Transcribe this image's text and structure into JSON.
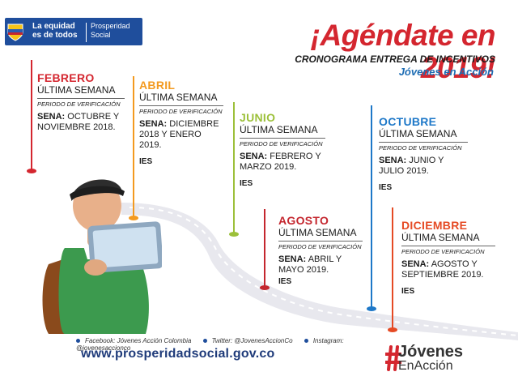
{
  "header": {
    "tagline": "La equidad es de todos",
    "brand": "Prosperidad Social",
    "headline": "¡Agéndate en 2019!",
    "subtitle": "CRONOGRAMA ENTREGA DE INCENTIVOS",
    "program": "Jóvenes en Acción"
  },
  "cards": [
    {
      "month": "FEBRERO",
      "week": "ÚLTIMA SEMANA",
      "period": "PERIODO DE VERIFICACIÓN",
      "sena_label": "SENA:",
      "sena_text": "OCTUBRE Y NOVIEMBRE 2018.",
      "ies": "",
      "color": "#d4262f"
    },
    {
      "month": "ABRIL",
      "week": "ÚLTIMA SEMANA",
      "period": "PERIODO DE VERIFICACIÓN",
      "sena_label": "SENA:",
      "sena_text": "DICIEMBRE 2018 Y ENERO 2019.",
      "ies": "IES",
      "color": "#f39a1f"
    },
    {
      "month": "JUNIO",
      "week": "ÚLTIMA SEMANA",
      "period": "PERIODO DE VERIFICACIÓN",
      "sena_label": "SENA:",
      "sena_text": "FEBRERO Y MARZO 2019.",
      "ies": "IES",
      "color": "#9cc03a"
    },
    {
      "month": "AGOSTO",
      "week": "ÚLTIMA SEMANA",
      "period": "PERIODO DE VERIFICACIÓN",
      "sena_label": "SENA:",
      "sena_text": "ABRIL Y MAYO 2019.",
      "ies": "IES",
      "color": "#c4262e"
    },
    {
      "month": "OCTUBRE",
      "week": "ÚLTIMA SEMANA",
      "period": "PERIODO DE VERIFICACIÓN",
      "sena_label": "SENA:",
      "sena_text": "JUNIO Y JULIO 2019.",
      "ies": "IES",
      "color": "#1e78c8"
    },
    {
      "month": "DICIEMBRE",
      "week": "ÚLTIMA SEMANA",
      "period": "PERIODO DE VERIFICACIÓN",
      "sena_label": "SENA:",
      "sena_text": "AGOSTO Y SEPTIEMBRE 2019.",
      "ies": "IES",
      "color": "#e54a24"
    }
  ],
  "footer": {
    "facebook": "Facebook: Jóvenes Acción Colombia",
    "twitter": "Twitter: @JovenesAccionCo",
    "instagram": "Instagram: @jovenesaccionco",
    "url": "www.prosperidadsocial.gov.co",
    "logo_line1": "Jóvenes",
    "logo_line2": "EnAcción",
    "hash_color": "#d4262f"
  }
}
